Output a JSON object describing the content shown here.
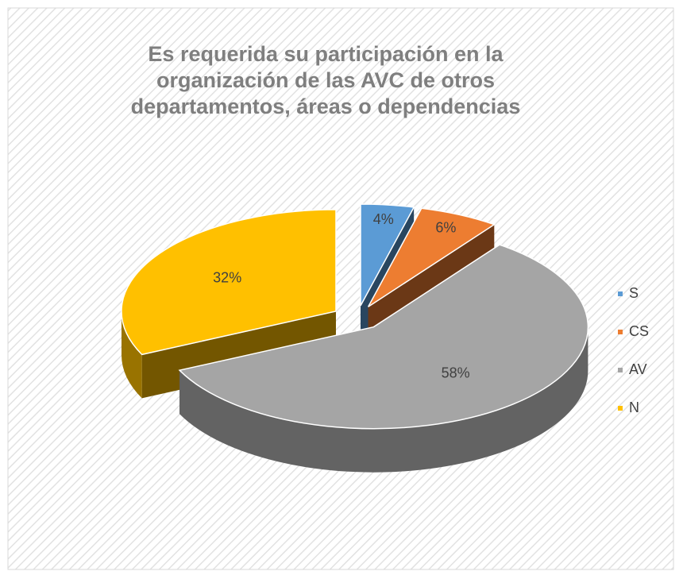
{
  "chart_data": {
    "type": "pie3d",
    "title": "Es requerida su participación en la organización de las AVC de otros departamentos, áreas o dependencias",
    "categories": [
      "S",
      "CS",
      "AV",
      "N"
    ],
    "values": [
      4,
      6,
      58,
      32
    ],
    "value_labels": [
      "4%",
      "6%",
      "58%",
      "32%"
    ],
    "colors": [
      "#5b9bd5",
      "#ed7d31",
      "#a5a5a5",
      "#ffc000"
    ],
    "legend": "right"
  }
}
